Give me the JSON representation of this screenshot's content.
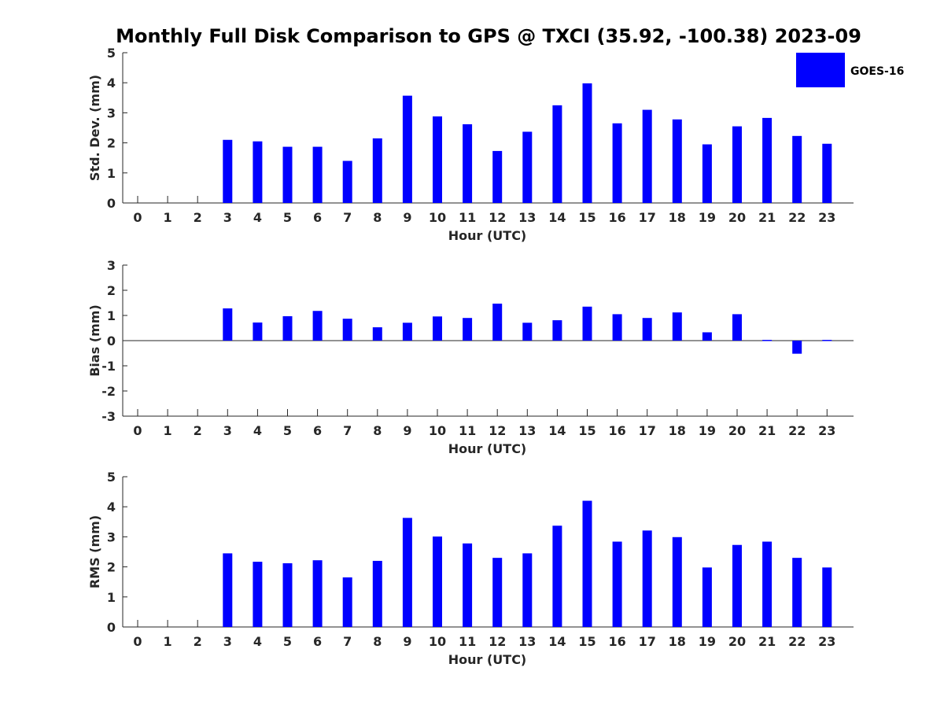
{
  "chart_data": {
    "type": "bar",
    "title": "Monthly Full Disk Comparison to GPS @ TXCI (35.92, -100.38) 2023-09",
    "legend": {
      "placement": "top-right",
      "entries": [
        "GOES-16"
      ]
    },
    "bar_color": "#0000ff",
    "panels": [
      {
        "id": "std",
        "ylabel": "Std. Dev. (mm)",
        "xlabel": "Hour (UTC)",
        "ylim": [
          0,
          5
        ],
        "yticks": [
          0,
          1,
          2,
          3,
          4,
          5
        ],
        "categories": [
          "0",
          "1",
          "2",
          "3",
          "4",
          "5",
          "6",
          "7",
          "8",
          "9",
          "10",
          "11",
          "12",
          "13",
          "14",
          "15",
          "16",
          "17",
          "18",
          "19",
          "20",
          "21",
          "22",
          "23"
        ],
        "series": [
          {
            "name": "GOES-16",
            "values": [
              null,
              null,
              null,
              2.1,
              2.05,
              1.87,
              1.87,
              1.4,
              2.15,
              3.57,
              2.88,
              2.62,
              1.73,
              2.37,
              3.25,
              3.98,
              2.65,
              3.1,
              2.78,
              1.95,
              2.55,
              2.83,
              2.23,
              1.97
            ]
          }
        ]
      },
      {
        "id": "bias",
        "ylabel": "Bias (mm)",
        "xlabel": "Hour (UTC)",
        "ylim": [
          -3,
          3
        ],
        "yticks": [
          -3,
          -2,
          -1,
          0,
          1,
          2,
          3
        ],
        "categories": [
          "0",
          "1",
          "2",
          "3",
          "4",
          "5",
          "6",
          "7",
          "8",
          "9",
          "10",
          "11",
          "12",
          "13",
          "14",
          "15",
          "16",
          "17",
          "18",
          "19",
          "20",
          "21",
          "22",
          "23"
        ],
        "series": [
          {
            "name": "GOES-16",
            "values": [
              null,
              null,
              null,
              1.28,
              0.72,
              0.97,
              1.18,
              0.87,
              0.53,
              0.71,
              0.96,
              0.9,
              1.47,
              0.71,
              0.81,
              1.35,
              1.05,
              0.9,
              1.12,
              0.33,
              1.05,
              0.03,
              -0.52,
              0.03
            ]
          }
        ]
      },
      {
        "id": "rms",
        "ylabel": "RMS (mm)",
        "xlabel": "Hour (UTC)",
        "ylim": [
          0,
          5
        ],
        "yticks": [
          0,
          1,
          2,
          3,
          4,
          5
        ],
        "categories": [
          "0",
          "1",
          "2",
          "3",
          "4",
          "5",
          "6",
          "7",
          "8",
          "9",
          "10",
          "11",
          "12",
          "13",
          "14",
          "15",
          "16",
          "17",
          "18",
          "19",
          "20",
          "21",
          "22",
          "23"
        ],
        "series": [
          {
            "name": "GOES-16",
            "values": [
              null,
              null,
              null,
              2.45,
              2.17,
              2.12,
              2.22,
              1.65,
              2.2,
              3.63,
              3.01,
              2.78,
              2.3,
              2.45,
              3.37,
              4.2,
              2.84,
              3.21,
              2.99,
              1.98,
              2.73,
              2.84,
              2.3,
              1.98
            ]
          }
        ]
      }
    ]
  }
}
